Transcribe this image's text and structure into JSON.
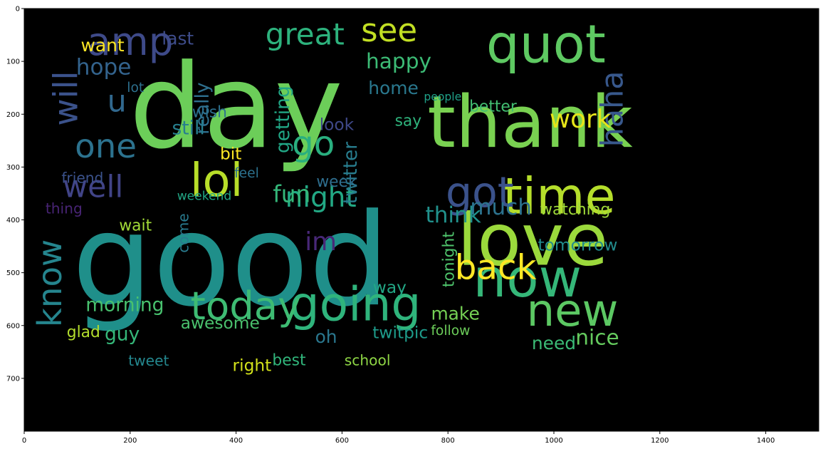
{
  "chart_data": {
    "type": "wordcloud",
    "x_ticks": [
      "0",
      "200",
      "400",
      "600",
      "800",
      "1000",
      "1200",
      "1400"
    ],
    "y_ticks": [
      "0",
      "100",
      "200",
      "300",
      "400",
      "500",
      "600",
      "700"
    ],
    "words": [
      "good",
      "day",
      "thank",
      "love",
      "now",
      "going",
      "today",
      "new",
      "quot",
      "time",
      "got",
      "lol",
      "amp",
      "go",
      "see",
      "great",
      "one",
      "know",
      "will",
      "well",
      "haha",
      "night",
      "work",
      "back",
      "im",
      "u",
      "much",
      "think",
      "tomorrow",
      "watching",
      "getting",
      "happy",
      "home",
      "hope",
      "fun",
      "twitter",
      "morning",
      "awesome",
      "nice",
      "really",
      "make",
      "last",
      "want",
      "still",
      "guy",
      "bit",
      "week",
      "look",
      "wish",
      "need",
      "oh",
      "way",
      "come",
      "twitpic",
      "tonight",
      "right",
      "say",
      "better",
      "friend",
      "thing",
      "people",
      "follow",
      "tweet",
      "best",
      "school",
      "wait",
      "weekend",
      "glad",
      "feel",
      "lot"
    ]
  }
}
